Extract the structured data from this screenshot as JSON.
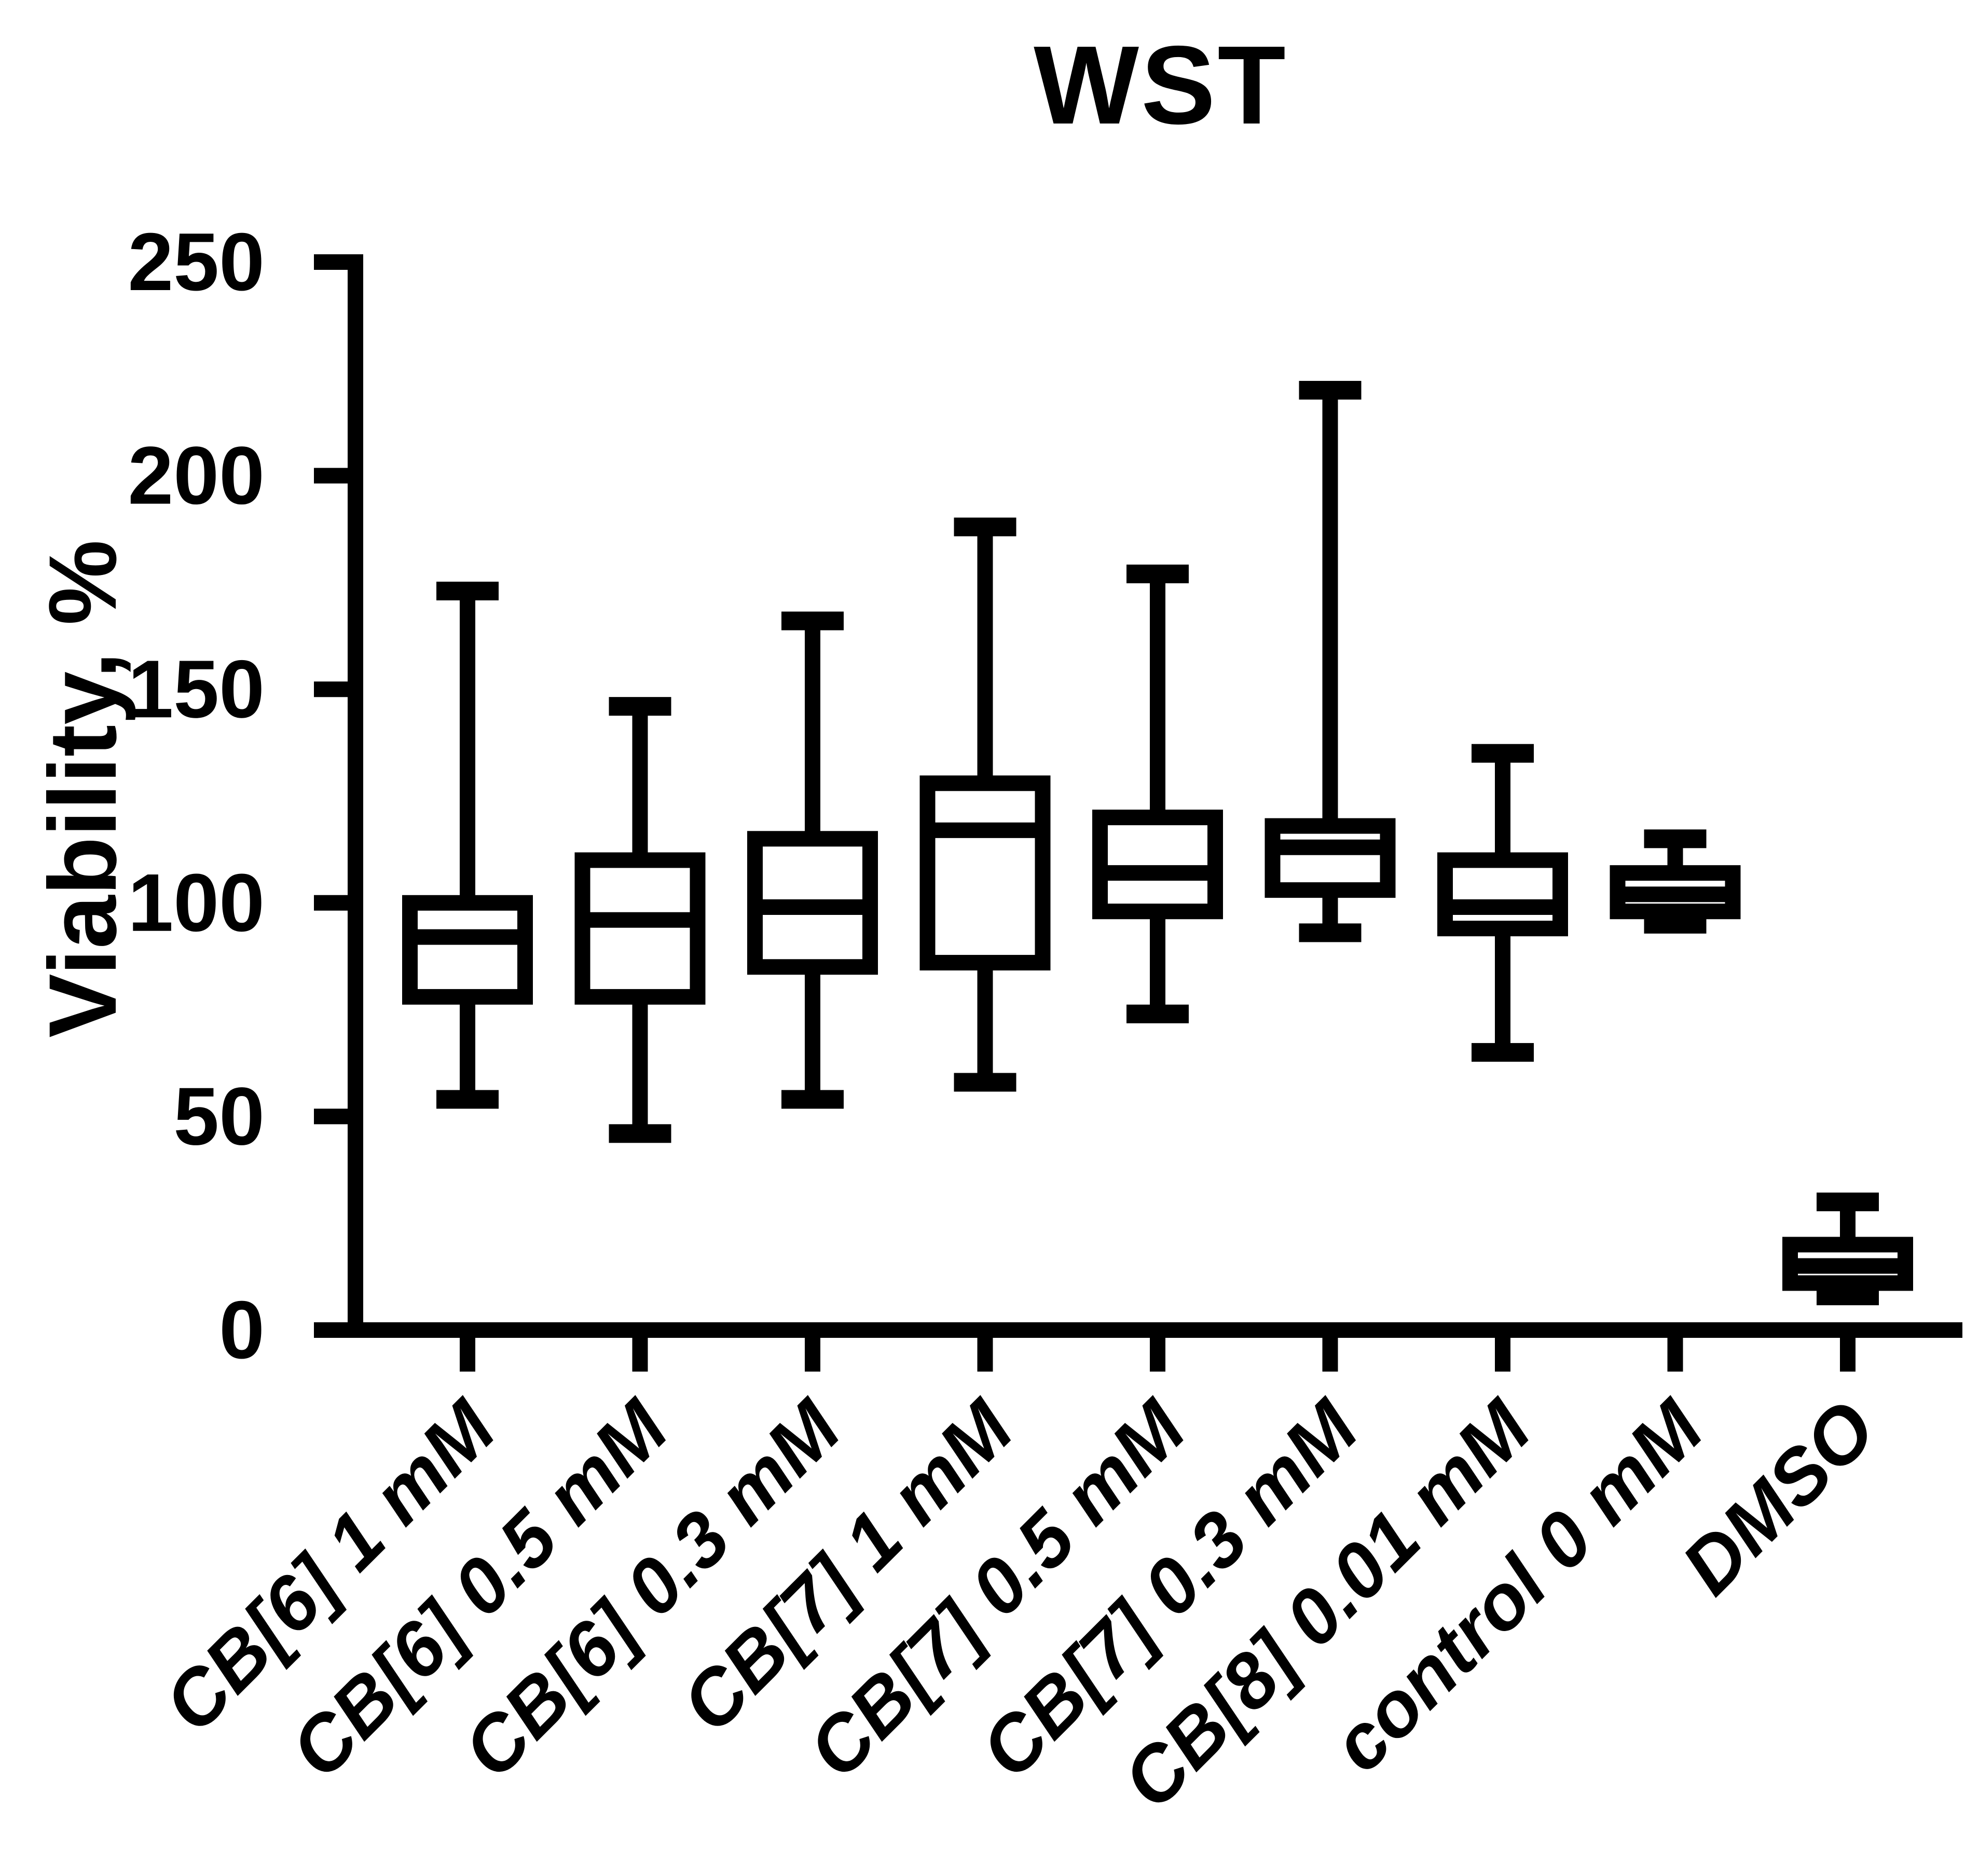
{
  "title": "WST",
  "colors": {
    "foreground": "#000000",
    "background": "#ffffff"
  },
  "chart_data": {
    "type": "boxplot",
    "title": "WST",
    "xlabel": "",
    "ylabel": "Viability, %",
    "ylim": [
      0,
      250
    ],
    "yticks": [
      0,
      50,
      100,
      150,
      200,
      250
    ],
    "grid": "off",
    "legend": "none",
    "categories": [
      "CB[6] 1 mM",
      "CB[6] 0.5 mM",
      "CB[6] 0.3 mM",
      "CB[7] 1 mM",
      "CB[7] 0.5 mM",
      "CB[7] 0.3 mM",
      "CB[8] 0.01 mM",
      "control 0 mM",
      "DMSO"
    ],
    "boxes": [
      {
        "category": "CB[6] 1 mM",
        "min": 54,
        "q1": 78,
        "median": 92,
        "q3": 100,
        "max": 173
      },
      {
        "category": "CB[6] 0.5 mM",
        "min": 46,
        "q1": 78,
        "median": 96,
        "q3": 110,
        "max": 146
      },
      {
        "category": "CB[6] 0.3 mM",
        "min": 54,
        "q1": 85,
        "median": 99,
        "q3": 115,
        "max": 166
      },
      {
        "category": "CB[7] 1 mM",
        "min": 58,
        "q1": 86,
        "median": 117,
        "q3": 128,
        "max": 188
      },
      {
        "category": "CB[7] 0.5 mM",
        "min": 74,
        "q1": 98,
        "median": 107,
        "q3": 120,
        "max": 177
      },
      {
        "category": "CB[7] 0.3 mM",
        "min": 93,
        "q1": 103,
        "median": 113,
        "q3": 118,
        "max": 220
      },
      {
        "category": "CB[8] 0.01 mM",
        "min": 65,
        "q1": 94,
        "median": 99,
        "q3": 110,
        "max": 135
      },
      {
        "category": "control 0 mM",
        "min": 95,
        "q1": 98,
        "median": 102,
        "q3": 107,
        "max": 115
      },
      {
        "category": "DMSO",
        "min": 8,
        "q1": 11,
        "median": 15,
        "q3": 20,
        "max": 30
      }
    ]
  }
}
